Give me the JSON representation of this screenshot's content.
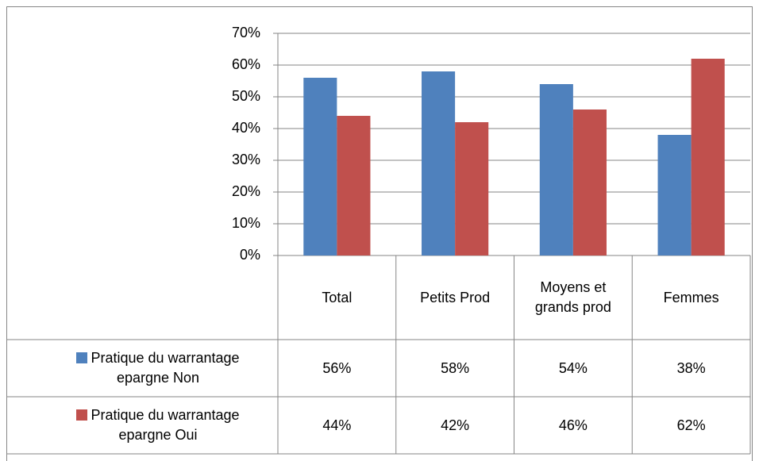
{
  "chart_data": {
    "type": "bar",
    "categories": [
      "Total",
      "Petits Prod",
      "Moyens et grands prod",
      "Femmes"
    ],
    "series": [
      {
        "name": "Pratique du warrantage epargne Non",
        "color": "#4f81bd",
        "values": [
          56,
          58,
          54,
          38
        ],
        "value_labels": [
          "56%",
          "58%",
          "54%",
          "38%"
        ]
      },
      {
        "name": "Pratique du warrantage epargne Oui",
        "color": "#c0504d",
        "values": [
          44,
          42,
          46,
          62
        ],
        "value_labels": [
          "44%",
          "42%",
          "46%",
          "62%"
        ]
      }
    ],
    "ylim": [
      0,
      70
    ],
    "yticks": [
      {
        "value": 0,
        "label": "0%"
      },
      {
        "value": 10,
        "label": "10%"
      },
      {
        "value": 20,
        "label": "20%"
      },
      {
        "value": 30,
        "label": "30%"
      },
      {
        "value": 40,
        "label": "40%"
      },
      {
        "value": 50,
        "label": "50%"
      },
      {
        "value": 60,
        "label": "60%"
      },
      {
        "value": 70,
        "label": "70%"
      }
    ],
    "grid": true,
    "legend": "table"
  }
}
